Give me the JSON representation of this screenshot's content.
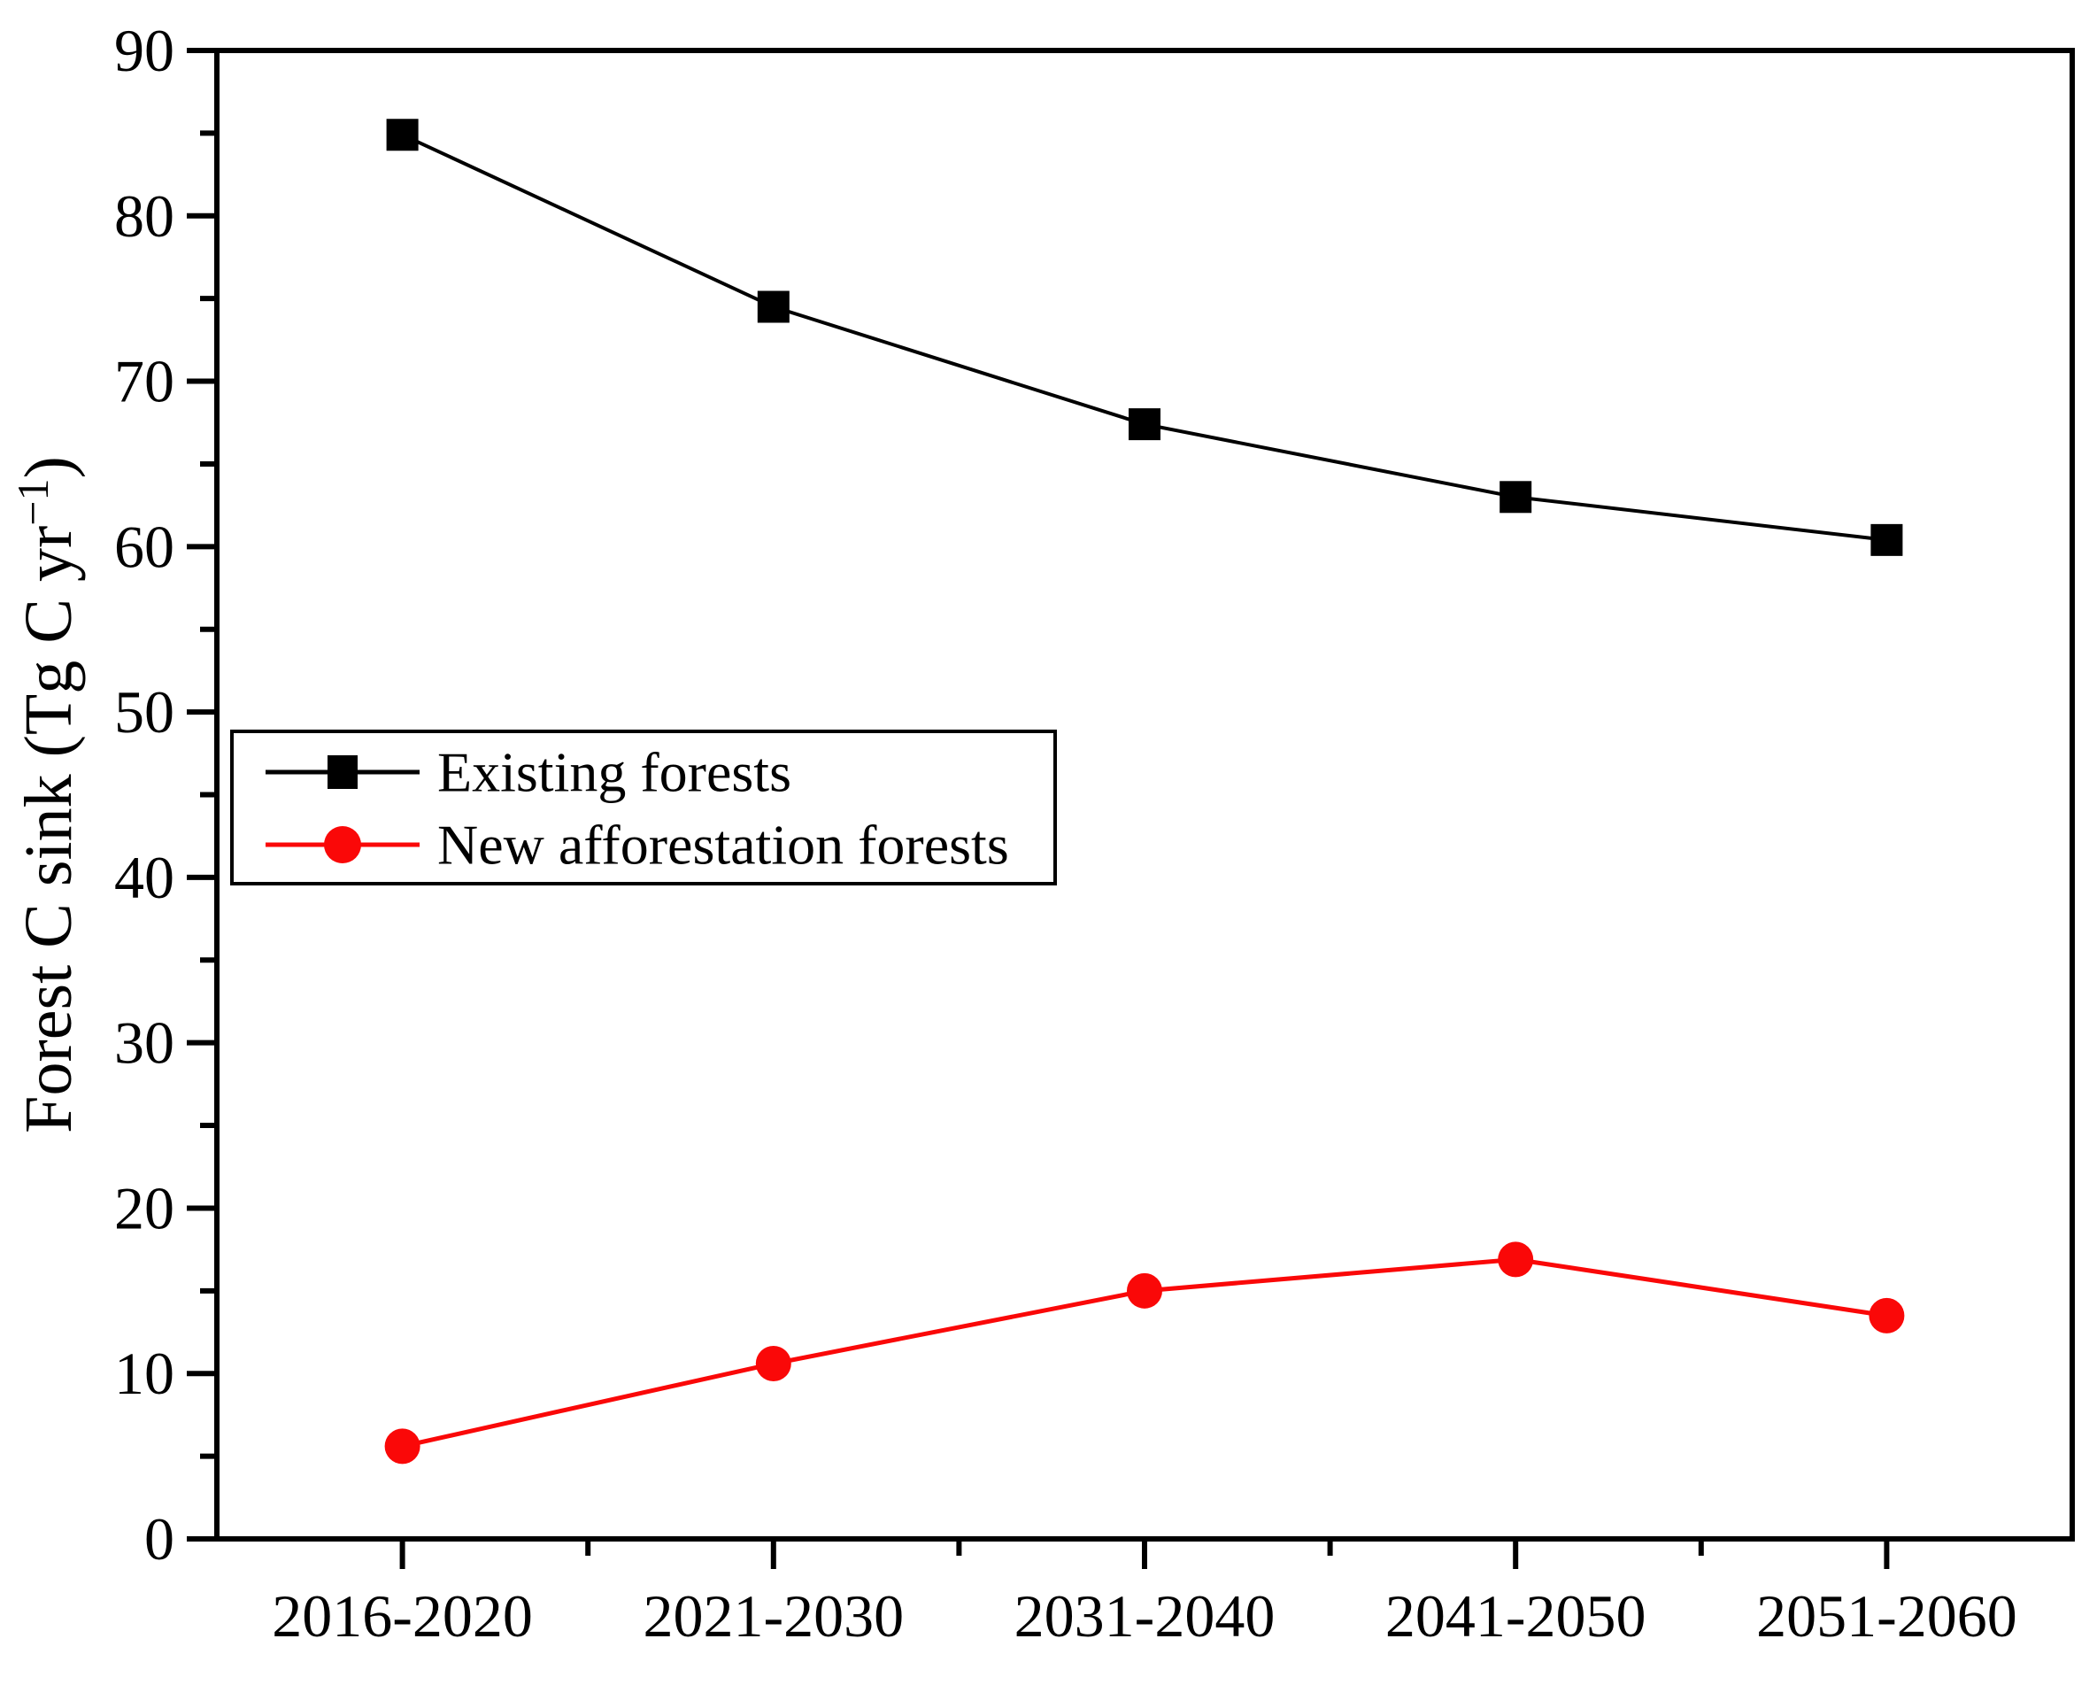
{
  "chart_data": {
    "type": "line",
    "title": "",
    "categories": [
      "2016-2020",
      "2021-2030",
      "2031-2040",
      "2041-2050",
      "2051-2060"
    ],
    "series": [
      {
        "name": "Existing forests",
        "color": "#000000",
        "marker": "square",
        "values": [
          84.9,
          74.5,
          67.4,
          63.0,
          60.4
        ]
      },
      {
        "name": "New afforestation forests",
        "color": "#fa0808",
        "marker": "circle",
        "values": [
          5.6,
          10.6,
          15.0,
          16.9,
          13.5
        ]
      }
    ],
    "xlabel": "",
    "ylabel": {
      "text": "Forest C sink (Tg C yr",
      "sup": "−1",
      "suffix": ")"
    },
    "ylim": [
      0,
      90
    ],
    "y_major_step": 10,
    "y_minor_step": 5,
    "y_tick_labels": [
      "0",
      "10",
      "20",
      "30",
      "40",
      "50",
      "60",
      "70",
      "80",
      "90"
    ],
    "grid": false,
    "legend_position": "middle-left",
    "legend_box": true,
    "axis_color": "#000000",
    "background_color": "#ffffff"
  }
}
